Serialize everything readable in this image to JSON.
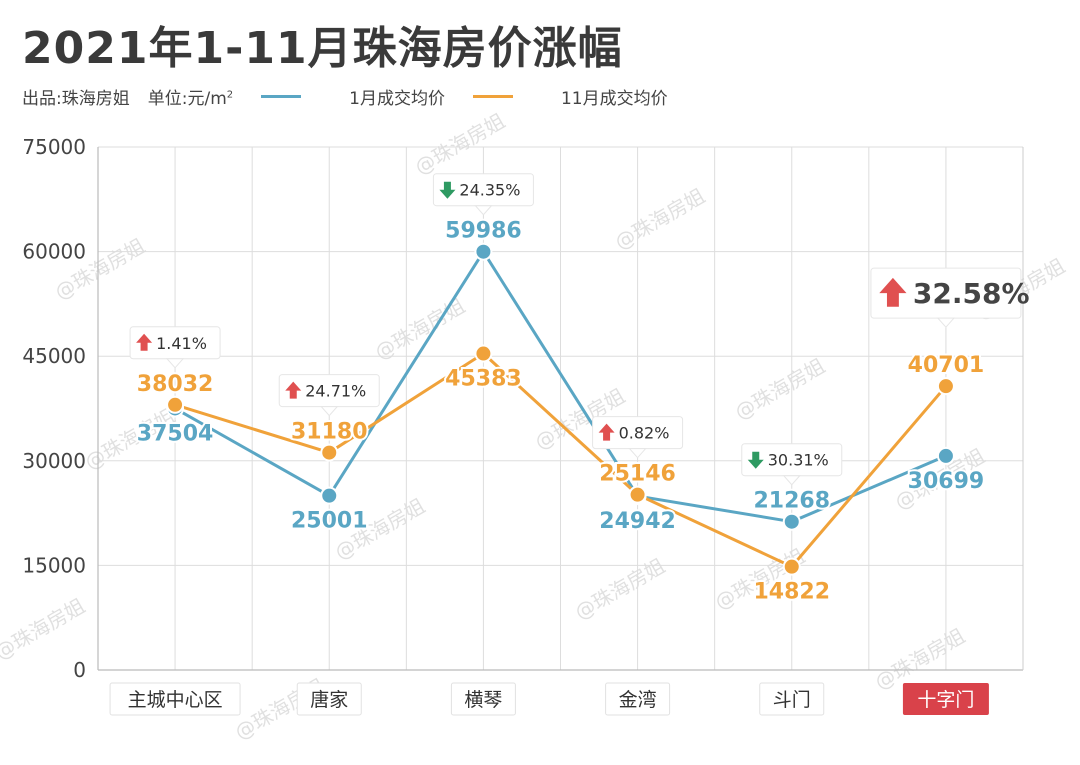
{
  "title": "2021年1-11月珠海房价涨幅",
  "source": "出品:珠海房姐",
  "unit_label": "单位:元/m",
  "unit_sup": "2",
  "watermark": "@珠海房姐",
  "colors": {
    "jan": "#5aa6c4",
    "nov": "#f0a23a",
    "up": "#e05050",
    "down": "#2e9a62",
    "highlight_bg": "#d9424a",
    "grid": "#dddddd"
  },
  "chart_data": {
    "type": "line",
    "categories": [
      "主城中心区",
      "唐家",
      "横琴",
      "金湾",
      "斗门",
      "十字门"
    ],
    "highlight_category": "十字门",
    "series": [
      {
        "name": "1月成交均价",
        "values": [
          37504,
          25001,
          59986,
          24942,
          21268,
          30699
        ]
      },
      {
        "name": "11月成交均价",
        "values": [
          38032,
          31180,
          45383,
          25146,
          14822,
          40701
        ]
      }
    ],
    "changes": [
      {
        "category": "主城中心区",
        "direction": "up",
        "label": "1.41%"
      },
      {
        "category": "唐家",
        "direction": "up",
        "label": "24.71%"
      },
      {
        "category": "横琴",
        "direction": "down",
        "label": "24.35%"
      },
      {
        "category": "金湾",
        "direction": "up",
        "label": "0.82%"
      },
      {
        "category": "斗门",
        "direction": "down",
        "label": "30.31%"
      },
      {
        "category": "十字门",
        "direction": "up",
        "label": "32.58%"
      }
    ],
    "yticks": [
      "0",
      "15000",
      "30000",
      "45000",
      "60000",
      "75000"
    ],
    "ylim": [
      0,
      75000
    ],
    "grid": true,
    "legend_position": "top"
  }
}
